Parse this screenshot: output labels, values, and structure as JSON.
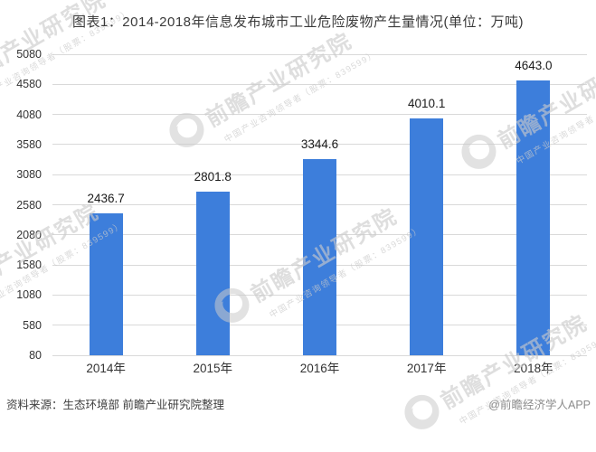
{
  "page": {
    "title": "图表1：2014-2018年信息发布城市工业危险废物产生量情况(单位：万吨)",
    "source_note": "资料来源：生态环境部 前瞻产业研究院整理",
    "credit": "@前瞻经济学人APP"
  },
  "watermark": {
    "logo_icon": "qianzhan-logo",
    "main_text": "前瞻产业研究院",
    "sub_text": "中国产业咨询领导者（股票：839599）"
  },
  "colors": {
    "bar": "#3D7EDB",
    "gridline": "#D9D9D9",
    "title_text": "#3A3A3A",
    "axis_text": "#333333",
    "value_label_text": "#1A1A1A",
    "source_text": "#3E3E3E",
    "credit_text": "#8C8C8C",
    "watermark": "#CBCBCB"
  },
  "chart_data": {
    "type": "bar",
    "title": "图表1：2014-2018年信息发布城市工业危险废物产生量情况",
    "unit": "万吨",
    "categories": [
      "2014年",
      "2015年",
      "2016年",
      "2017年",
      "2018年"
    ],
    "values": [
      2436.7,
      2801.8,
      3344.6,
      4010.1,
      4643.0
    ],
    "value_labels": [
      "2436.7",
      "2801.8",
      "3344.6",
      "4010.1",
      "4643.0"
    ],
    "yticks": [
      5080,
      4580,
      4080,
      3580,
      3080,
      2580,
      2080,
      1580,
      1080,
      580,
      80
    ],
    "ylim": [
      80,
      5080
    ],
    "grid": true,
    "legend": "none",
    "bar_color": "#3D7EDB"
  }
}
